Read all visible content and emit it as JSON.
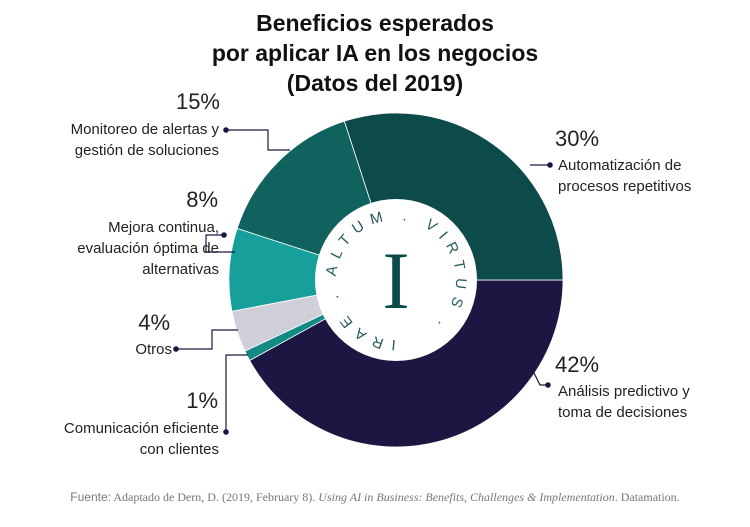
{
  "chart_data": {
    "type": "pie",
    "variant": "donut",
    "title": [
      "Beneficios esperados",
      "por aplicar IA en los negocios",
      "(Datos del 2019)"
    ],
    "slices": [
      {
        "label": "Análisis predictivo y toma de decisiones",
        "value": 42,
        "pct_label": "42%",
        "color": "#1c1742"
      },
      {
        "label": "Comunicación eficiente con clientes",
        "value": 1,
        "pct_label": "1%",
        "color": "#138a84"
      },
      {
        "label": "Otros",
        "value": 4,
        "pct_label": "4%",
        "color": "#cfcfd9"
      },
      {
        "label": "Mejora continua, evaluación óptima de alternativas",
        "value": 8,
        "pct_label": "8%",
        "color": "#17a09b"
      },
      {
        "label": "Monitoreo de alertas y gestión de soluciones",
        "value": 15,
        "pct_label": "15%",
        "color": "#10625f"
      },
      {
        "label": "Automatización de procesos repetitivos",
        "value": 30,
        "pct_label": "30%",
        "color": "#0d4a4a"
      }
    ],
    "legend": "none"
  },
  "labels": {
    "s0": [
      "Análisis predictivo y",
      "toma de decisiones"
    ],
    "s1": [
      "Comunicación eficiente",
      "con clientes"
    ],
    "s2": [
      "Otros"
    ],
    "s3": [
      "Mejora continua,",
      "evaluación óptima de",
      "alternativas"
    ],
    "s4": [
      "Monitoreo de alertas y",
      "gestión de soluciones"
    ],
    "s5": [
      "Automatización de",
      "procesos repetitivos"
    ]
  },
  "logo": {
    "letter": "I",
    "ring_text": "IRAE . ALTUM . VIRTUS ."
  },
  "source": {
    "prefix": "Fuente:",
    "text": " Adaptado de Dern, D. (2019, February 8). ",
    "italic": "Using AI in Business: Benefits, Challenges & Implementation",
    "suffix": ". Datamation."
  }
}
